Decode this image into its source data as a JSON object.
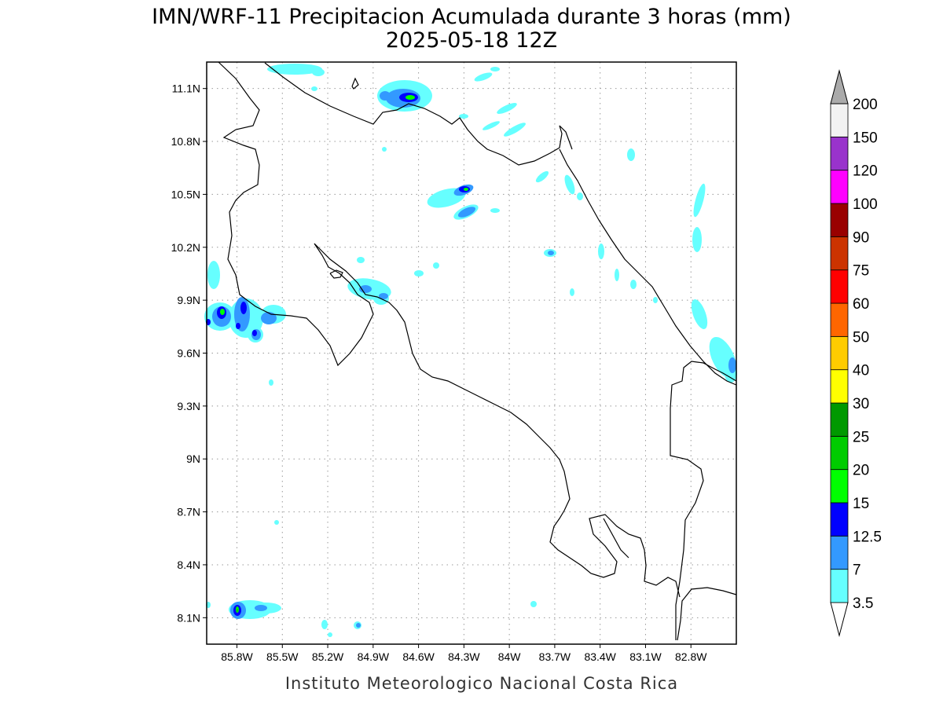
{
  "title": {
    "line1": "IMN/WRF-11 Precipitacion Acumulada durante 3 horas (mm)",
    "line2": "2025-05-18 12Z"
  },
  "footer": "Instituto Meteorologico Nacional Costa Rica",
  "map": {
    "lon_range": [
      -86.0,
      -82.5
    ],
    "lat_range": [
      7.95,
      11.25
    ],
    "grid": true,
    "lon_ticks": [
      {
        "value": -85.8,
        "label": "85.8W"
      },
      {
        "value": -85.5,
        "label": "85.5W"
      },
      {
        "value": -85.2,
        "label": "85.2W"
      },
      {
        "value": -84.9,
        "label": "84.9W"
      },
      {
        "value": -84.6,
        "label": "84.6W"
      },
      {
        "value": -84.3,
        "label": "84.3W"
      },
      {
        "value": -84.0,
        "label": "84W"
      },
      {
        "value": -83.7,
        "label": "83.7W"
      },
      {
        "value": -83.4,
        "label": "83.4W"
      },
      {
        "value": -83.1,
        "label": "83.1W"
      },
      {
        "value": -82.8,
        "label": "82.8W"
      }
    ],
    "lat_ticks": [
      {
        "value": 11.1,
        "label": "11.1N"
      },
      {
        "value": 10.8,
        "label": "10.8N"
      },
      {
        "value": 10.5,
        "label": "10.5N"
      },
      {
        "value": 10.2,
        "label": "10.2N"
      },
      {
        "value": 9.9,
        "label": "9.9N"
      },
      {
        "value": 9.6,
        "label": "9.6N"
      },
      {
        "value": 9.3,
        "label": "9.3N"
      },
      {
        "value": 9.0,
        "label": "9N"
      },
      {
        "value": 8.7,
        "label": "8.7N"
      },
      {
        "value": 8.4,
        "label": "8.4N"
      },
      {
        "value": 8.1,
        "label": "8.1N"
      }
    ]
  },
  "colorbar": {
    "labels": [
      "3.5",
      "7",
      "12.5",
      "15",
      "20",
      "25",
      "30",
      "40",
      "50",
      "60",
      "75",
      "90",
      "100",
      "120",
      "150",
      "200"
    ],
    "colors": [
      "#66ffff",
      "#3399ff",
      "#0000ff",
      "#00ff00",
      "#00cc00",
      "#009900",
      "#ffff00",
      "#ffcc00",
      "#ff6600",
      "#ff0000",
      "#cc3300",
      "#990000",
      "#ff00ff",
      "#9933cc",
      "#f2f2f2",
      "#aaaaaa"
    ],
    "below_color": "#ffffff"
  }
}
